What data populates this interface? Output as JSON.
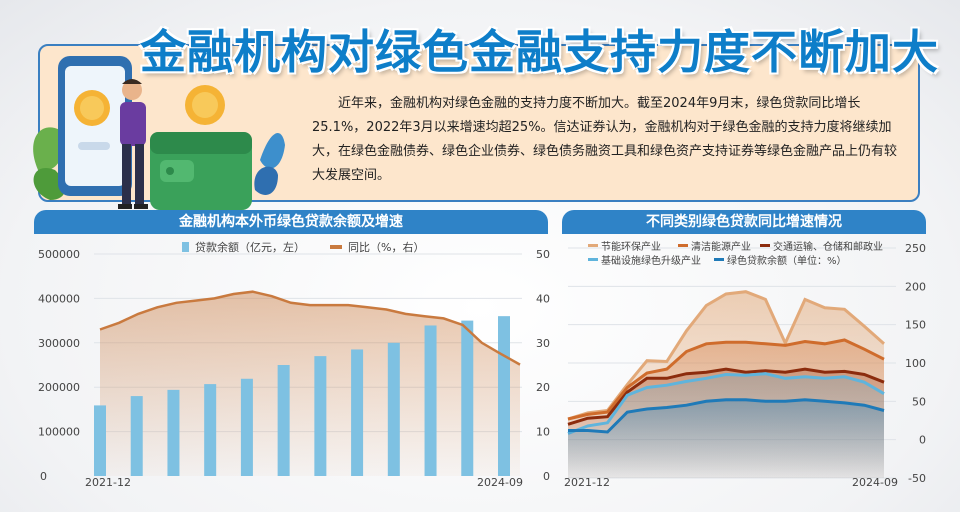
{
  "header": {
    "title": "金融机构对绿色金融支持力度不断加大",
    "intro": "近年来，金融机构对绿色金融的支持力度不断加大。截至2024年9月末，绿色贷款同比增长25.1%，2022年3月以来增速均超25%。信达证券认为，金融机构对于绿色金融的支持力度将继续加大，在绿色金融债券、绿色企业债券、绿色债务融资工具和绿色资产支持证券等绿色金融产品上仍有较大发展空间。"
  },
  "colors": {
    "bar": "#7ec1e2",
    "yoy_line": "#c97a3f",
    "energy": "#e2a979",
    "clean": "#cf6c2c",
    "transport": "#8c2c0d",
    "infra": "#5fb4dc",
    "green_total": "#1f7ab8",
    "section": "#2f83c7"
  },
  "chart_data": [
    {
      "type": "bar",
      "title": "金融机构本外币绿色贷款余额及增速",
      "legend": [
        "贷款余额（亿元，左）",
        "同比（%，右）"
      ],
      "x_start_label": "2021-12",
      "x_end_label": "2024-09",
      "left_ticks": [
        "0",
        "100000",
        "200000",
        "300000",
        "400000",
        "500000"
      ],
      "right_ticks": [
        "10",
        "20",
        "30",
        "40",
        "50"
      ],
      "left_ylim": [
        0,
        500000
      ],
      "right_ylim": [
        0,
        50
      ],
      "bars": [
        159000,
        180000,
        194000,
        207000,
        219000,
        250000,
        270000,
        285000,
        300000,
        339000,
        350000,
        360000
      ],
      "yoy": [
        33,
        34.5,
        36.5,
        38,
        39,
        39.5,
        40,
        41,
        41.5,
        40.5,
        39,
        38.5,
        38.5,
        38.5,
        38,
        37.5,
        36.5,
        36,
        35.5,
        34,
        30,
        27.5,
        25.1
      ]
    },
    {
      "type": "area",
      "title": "不同类别绿色贷款同比增速情况",
      "x_start_label": "2021-12",
      "x_end_label": "2024-09",
      "right_ticks": [
        "-50",
        "0",
        "50",
        "100",
        "150",
        "200",
        "250"
      ],
      "ylim": [
        -50,
        250
      ],
      "series": [
        {
          "name": "节能环保产业",
          "values": [
            27,
            35,
            38,
            72,
            103,
            102,
            142,
            175,
            190,
            193,
            183,
            126,
            183,
            172,
            170,
            148,
            125
          ]
        },
        {
          "name": "清洁能源产业",
          "values": [
            27,
            33,
            36,
            68,
            87,
            92,
            115,
            125,
            127,
            127,
            125,
            123,
            128,
            125,
            130,
            118,
            105
          ]
        },
        {
          "name": "交通运输、仓储和邮政业",
          "values": [
            20,
            28,
            30,
            62,
            80,
            80,
            86,
            88,
            92,
            88,
            90,
            88,
            92,
            88,
            89,
            85,
            75
          ]
        },
        {
          "name": "基础设施绿色升级产业",
          "values": [
            8,
            18,
            22,
            58,
            68,
            71,
            76,
            80,
            85,
            84,
            86,
            80,
            82,
            80,
            82,
            75,
            60
          ]
        },
        {
          "name": "绿色贷款余额（单位：%）",
          "values": [
            12,
            12,
            10,
            36,
            40,
            42,
            45,
            50,
            52,
            52,
            50,
            50,
            52,
            50,
            48,
            45,
            38
          ]
        }
      ]
    }
  ]
}
